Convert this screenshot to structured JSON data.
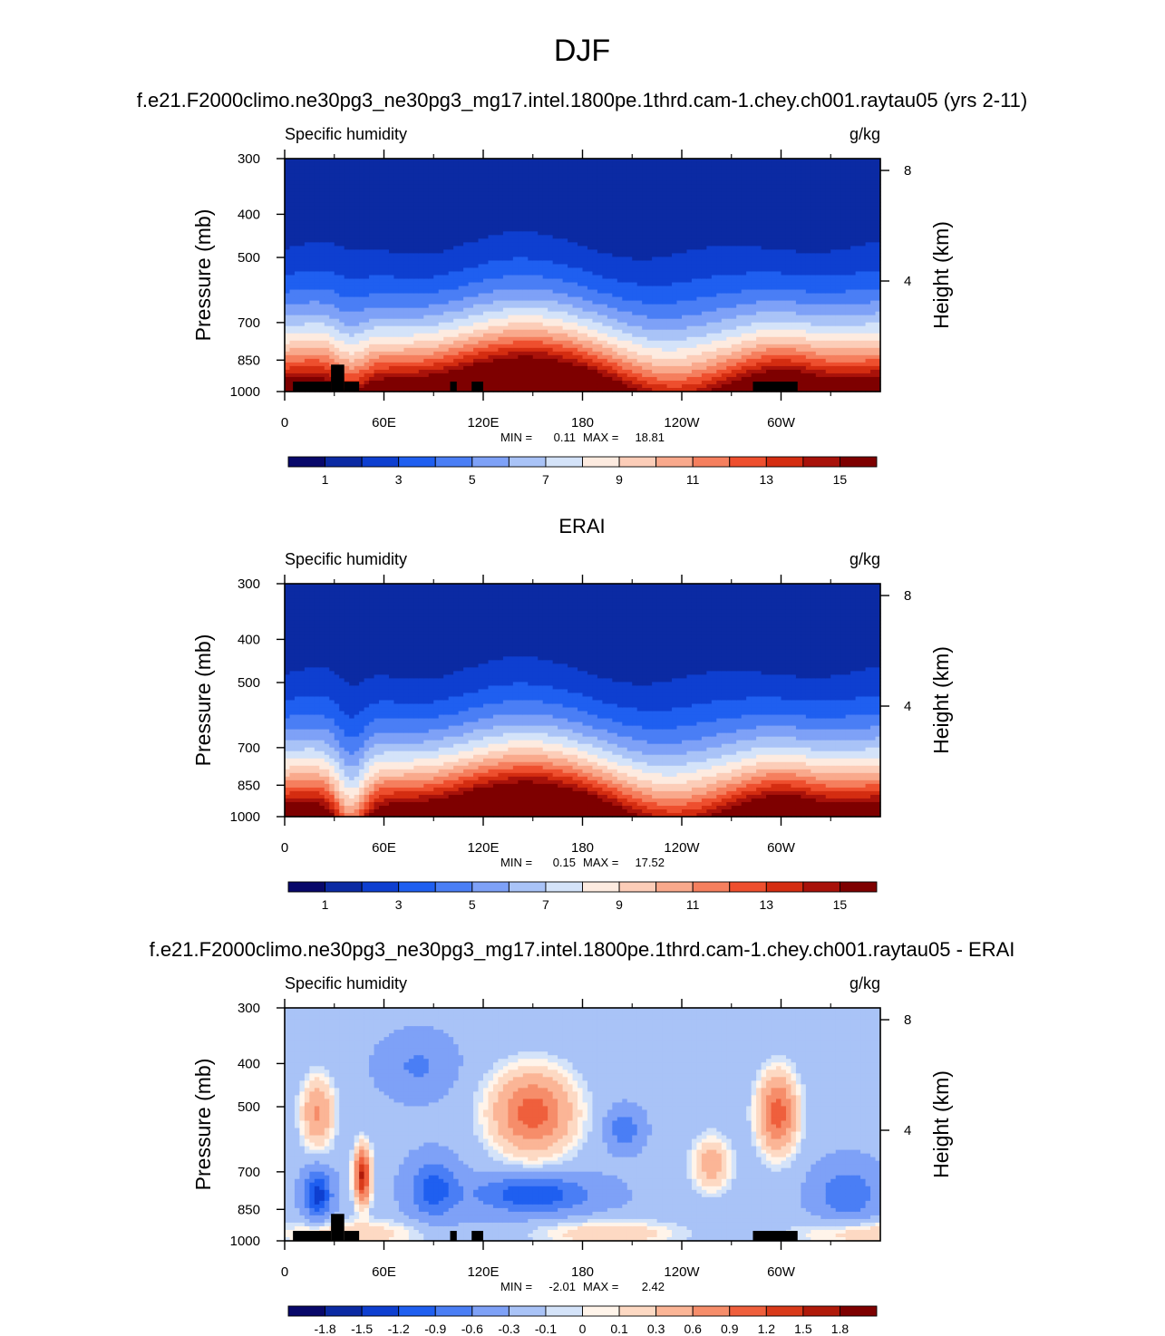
{
  "figure": {
    "main_title": "DJF"
  },
  "colors": {
    "abs_scale": [
      "#08086a",
      "#0b2aa3",
      "#0e3fd0",
      "#1f5ff0",
      "#4a7ef5",
      "#7ea1f7",
      "#a9c3f7",
      "#d4e3f9",
      "#fdebe0",
      "#fccdb8",
      "#f9a98c",
      "#f57f5e",
      "#ee4f2e",
      "#d42d11",
      "#a8120a",
      "#7e0000"
    ],
    "diff_scale": [
      "#08086a",
      "#0b2aa3",
      "#0e3fd0",
      "#1f5ff0",
      "#4a7ef5",
      "#7ea1f7",
      "#a9c3f7",
      "#d4e3f9",
      "#fff4ea",
      "#fdd9c3",
      "#fbb596",
      "#f68d6a",
      "#ef5f3c",
      "#d93a1a",
      "#b01a0a",
      "#7e0000"
    ],
    "topography": "#000000"
  },
  "chart_data": [
    {
      "type": "heatmap",
      "title": "f.e21.F2000climo.ne30pg3_ne30pg3_mg17.intel.1800pe.1thrd.cam-1.chey.ch001.raytau05 (yrs 2-11)",
      "left_string": "Specific humidity",
      "right_string": "g/kg",
      "ylabel": "Pressure (mb)",
      "y2label": "Height (km)",
      "x_ticklabels": [
        "0",
        "60E",
        "120E",
        "180",
        "120W",
        "60W"
      ],
      "y_ticklabels": [
        "300",
        "400",
        "500",
        "700",
        "850",
        "1000"
      ],
      "y2_ticklabels": [
        "8",
        "4"
      ],
      "stats": {
        "min_label": "MIN =",
        "min": "0.11",
        "max_label": "MAX =",
        "max": "18.81"
      },
      "colorbar_labels": [
        "1",
        "3",
        "5",
        "7",
        "9",
        "11",
        "13",
        "15"
      ],
      "levels": [
        0,
        1,
        2,
        3,
        4,
        5,
        6,
        7,
        8,
        9,
        10,
        11,
        12,
        13,
        14,
        15
      ],
      "xlim": [
        0,
        360
      ],
      "ylim": [
        1000,
        300
      ],
      "grid": false
    },
    {
      "type": "heatmap",
      "title": "ERAI",
      "left_string": "Specific humidity",
      "right_string": "g/kg",
      "ylabel": "Pressure (mb)",
      "y2label": "Height (km)",
      "x_ticklabels": [
        "0",
        "60E",
        "120E",
        "180",
        "120W",
        "60W"
      ],
      "y_ticklabels": [
        "300",
        "400",
        "500",
        "700",
        "850",
        "1000"
      ],
      "y2_ticklabels": [
        "8",
        "4"
      ],
      "stats": {
        "min_label": "MIN =",
        "min": "0.15",
        "max_label": "MAX =",
        "max": "17.52"
      },
      "colorbar_labels": [
        "1",
        "3",
        "5",
        "7",
        "9",
        "11",
        "13",
        "15"
      ],
      "levels": [
        0,
        1,
        2,
        3,
        4,
        5,
        6,
        7,
        8,
        9,
        10,
        11,
        12,
        13,
        14,
        15
      ],
      "xlim": [
        0,
        360
      ],
      "ylim": [
        1000,
        300
      ],
      "grid": false
    },
    {
      "type": "heatmap",
      "title": "f.e21.F2000climo.ne30pg3_ne30pg3_mg17.intel.1800pe.1thrd.cam-1.chey.ch001.raytau05 - ERAI",
      "left_string": "Specific humidity",
      "right_string": "g/kg",
      "ylabel": "Pressure (mb)",
      "y2label": "Height (km)",
      "x_ticklabels": [
        "0",
        "60E",
        "120E",
        "180",
        "120W",
        "60W"
      ],
      "y_ticklabels": [
        "300",
        "400",
        "500",
        "700",
        "850",
        "1000"
      ],
      "y2_ticklabels": [
        "8",
        "4"
      ],
      "stats": {
        "min_label": "MIN =",
        "min": "-2.01",
        "max_label": "MAX =",
        "max": "2.42"
      },
      "colorbar_labels": [
        "-1.8",
        "-1.5",
        "-1.2",
        "-0.9",
        "-0.6",
        "-0.3",
        "-0.1",
        "0",
        "0.1",
        "0.3",
        "0.6",
        "0.9",
        "1.2",
        "1.5",
        "1.8"
      ],
      "levels": [
        -1.8,
        -1.5,
        -1.2,
        -0.9,
        -0.6,
        -0.3,
        -0.1,
        0,
        0.1,
        0.3,
        0.6,
        0.9,
        1.2,
        1.5,
        1.8
      ],
      "xlim": [
        0,
        360
      ],
      "ylim": [
        1000,
        300
      ],
      "grid": false
    }
  ]
}
